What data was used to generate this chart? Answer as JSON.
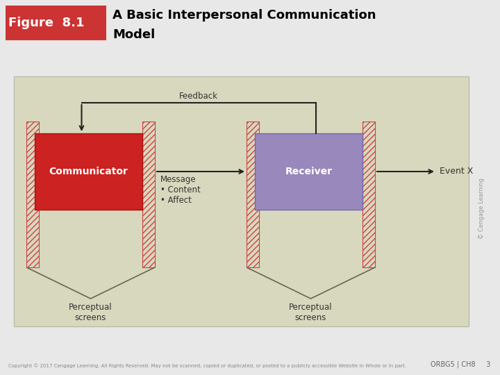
{
  "page_bg": "#e8e8e8",
  "header_bg": "#cc3333",
  "header_text": "Figure  8.1",
  "title_line1": "A Basic Interpersonal Communication",
  "title_line2": "Model",
  "comm_color": "#cc2222",
  "comm_label": "Communicator",
  "recv_color": "#9988bb",
  "recv_label": "Receiver",
  "feedback_label": "Feedback",
  "message_label": "Message\n• Content\n• Affect",
  "event_label": "Event X",
  "perc_label_left": "Perceptual\nscreens",
  "perc_label_right": "Perceptual\nscreens",
  "copyright_text": "Copyright © 2017 Cengage Learning. All Rights Reserved. May not be scanned, copied or duplicated, or posted to a publicly accessible Website in Whole or in part.",
  "page_ref": "ORBG5 | CH8     3",
  "cengage_watermark": "© Cengage Learning",
  "diagram_bg": "#d8d8be",
  "hatch_color": "#cc4444",
  "arrow_color": "#222222",
  "text_color": "#333333"
}
